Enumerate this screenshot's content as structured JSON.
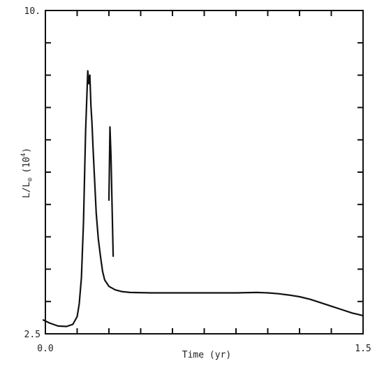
{
  "chart_data": {
    "type": "line",
    "title": "",
    "xlabel": "Time (yr)",
    "ylabel": "L/L⊙ (10⁴)",
    "ylabel_parts": {
      "main": "L/L",
      "sub": "⊙",
      "paren_open": "(10",
      "sup": "4",
      "paren_close": ")"
    },
    "xlim": [
      0.0,
      1.5
    ],
    "ylim": [
      2.5,
      10.0
    ],
    "x_tick_labels": [
      {
        "value": 0.0,
        "label": "0.0"
      },
      {
        "value": 1.5,
        "label": "1.5"
      }
    ],
    "y_tick_labels": [
      {
        "value": 10.0,
        "label": "10."
      },
      {
        "value": 2.5,
        "label": "2.5"
      }
    ],
    "x_minor_ticks": [
      0.0,
      0.15,
      0.3,
      0.45,
      0.6,
      0.75,
      0.9,
      1.05,
      1.2,
      1.35,
      1.5
    ],
    "y_minor_ticks": [
      3.25,
      4.0,
      4.75,
      5.5,
      6.25,
      7.0,
      7.75,
      8.5,
      9.25
    ],
    "grid": false,
    "series": [
      {
        "color": "#111111",
        "x": [
          -0.01,
          0.02,
          0.06,
          0.1,
          0.13,
          0.15,
          0.16,
          0.17,
          0.18,
          0.19,
          0.2,
          0.205,
          0.21,
          0.215,
          0.22,
          0.225,
          0.23,
          0.24,
          0.25,
          0.26,
          0.27,
          0.28,
          0.3,
          0.33,
          0.36,
          0.4,
          0.5,
          0.6,
          0.7,
          0.8,
          0.9,
          1.0,
          1.05,
          1.1,
          1.15,
          1.2,
          1.25,
          1.3,
          1.35,
          1.4,
          1.45,
          1.5
        ],
        "y": [
          2.82,
          2.75,
          2.68,
          2.67,
          2.72,
          2.9,
          3.2,
          3.8,
          5.1,
          7.2,
          8.6,
          8.3,
          8.5,
          7.8,
          7.4,
          6.8,
          6.3,
          5.3,
          4.7,
          4.3,
          3.95,
          3.75,
          3.6,
          3.52,
          3.48,
          3.46,
          3.45,
          3.45,
          3.45,
          3.45,
          3.45,
          3.46,
          3.45,
          3.43,
          3.4,
          3.36,
          3.3,
          3.22,
          3.14,
          3.06,
          2.98,
          2.92
        ]
      },
      {
        "color": "#111111",
        "x": [
          0.3,
          0.305,
          0.31,
          0.315,
          0.32
        ],
        "y": [
          5.6,
          7.3,
          6.6,
          5.4,
          4.3
        ]
      }
    ]
  }
}
